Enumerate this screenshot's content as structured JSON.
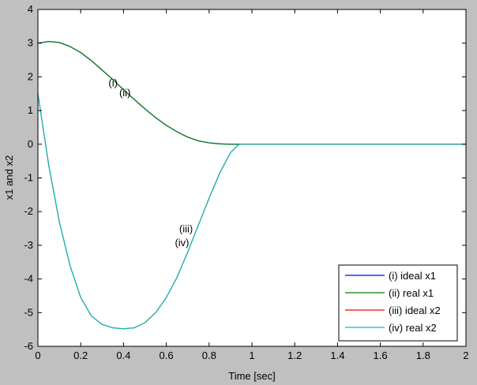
{
  "chart_data": {
    "type": "line",
    "title": "",
    "xlabel": "Time [sec]",
    "ylabel": "x1 and x2",
    "xlim": [
      0,
      2
    ],
    "ylim": [
      -6,
      4
    ],
    "xticks": [
      "0",
      "0.2",
      "0.4",
      "0.6",
      "0.8",
      "1",
      "1.2",
      "1.4",
      "1.6",
      "1.8",
      "2"
    ],
    "yticks": [
      "4",
      "3",
      "2",
      "1",
      "0",
      "-1",
      "-2",
      "-3",
      "-4",
      "-5",
      "-6"
    ],
    "xtick_values": [
      0,
      0.2,
      0.4,
      0.6,
      0.8,
      1.0,
      1.2,
      1.4,
      1.6,
      1.8,
      2.0
    ],
    "ytick_values": [
      4,
      3,
      2,
      1,
      0,
      -1,
      -2,
      -3,
      -4,
      -5,
      -6
    ],
    "grid": false,
    "legend_position": "bottom-right",
    "series": [
      {
        "name": "(i) ideal x1",
        "color": "#0000ff",
        "x": [
          0,
          0.05,
          0.1,
          0.15,
          0.2,
          0.25,
          0.3,
          0.35,
          0.4,
          0.45,
          0.5,
          0.55,
          0.6,
          0.65,
          0.7,
          0.75,
          0.8,
          0.85,
          0.9,
          0.94,
          1.0,
          2.0
        ],
        "y": [
          3.0,
          3.05,
          3.02,
          2.9,
          2.72,
          2.48,
          2.2,
          1.92,
          1.62,
          1.33,
          1.05,
          0.79,
          0.56,
          0.37,
          0.21,
          0.1,
          0.04,
          0.01,
          0.0,
          0.0,
          0.0,
          0.0
        ]
      },
      {
        "name": "(ii) real x1",
        "color": "#008000",
        "x": [
          0,
          0.05,
          0.1,
          0.15,
          0.2,
          0.25,
          0.3,
          0.35,
          0.4,
          0.45,
          0.5,
          0.55,
          0.6,
          0.65,
          0.7,
          0.75,
          0.8,
          0.85,
          0.9,
          0.94,
          1.0,
          2.0
        ],
        "y": [
          3.0,
          3.05,
          3.02,
          2.9,
          2.72,
          2.48,
          2.2,
          1.92,
          1.62,
          1.33,
          1.05,
          0.79,
          0.56,
          0.37,
          0.21,
          0.1,
          0.04,
          0.01,
          0.0,
          0.0,
          0.0,
          0.0
        ]
      },
      {
        "name": "(iii) ideal x2",
        "color": "#ff0000",
        "x": [
          0,
          0.05,
          0.1,
          0.15,
          0.2,
          0.25,
          0.3,
          0.35,
          0.4,
          0.45,
          0.5,
          0.55,
          0.6,
          0.65,
          0.7,
          0.75,
          0.8,
          0.85,
          0.9,
          0.94,
          1.0,
          2.0
        ],
        "y": [
          1.5,
          -0.6,
          -2.3,
          -3.6,
          -4.55,
          -5.1,
          -5.35,
          -5.45,
          -5.48,
          -5.45,
          -5.3,
          -5.0,
          -4.55,
          -3.95,
          -3.2,
          -2.4,
          -1.6,
          -0.85,
          -0.25,
          0.0,
          0.0,
          0.0
        ]
      },
      {
        "name": "(iv) real x2",
        "color": "#00c0c0",
        "x": [
          0,
          0.05,
          0.1,
          0.15,
          0.2,
          0.25,
          0.3,
          0.35,
          0.4,
          0.45,
          0.5,
          0.55,
          0.6,
          0.65,
          0.7,
          0.75,
          0.8,
          0.85,
          0.9,
          0.94,
          1.0,
          2.0
        ],
        "y": [
          1.5,
          -0.6,
          -2.3,
          -3.6,
          -4.55,
          -5.1,
          -5.35,
          -5.45,
          -5.48,
          -5.45,
          -5.3,
          -5.0,
          -4.55,
          -3.95,
          -3.2,
          -2.4,
          -1.6,
          -0.85,
          -0.25,
          0.0,
          0.0,
          0.0
        ]
      }
    ],
    "annotations": [
      {
        "text": "(i)",
        "x": 0.33,
        "y": 1.72
      },
      {
        "text": "(ii)",
        "x": 0.38,
        "y": 1.42
      },
      {
        "text": "(iii)",
        "x": 0.66,
        "y": -2.62
      },
      {
        "text": "(iv)",
        "x": 0.64,
        "y": -3.02
      }
    ]
  }
}
